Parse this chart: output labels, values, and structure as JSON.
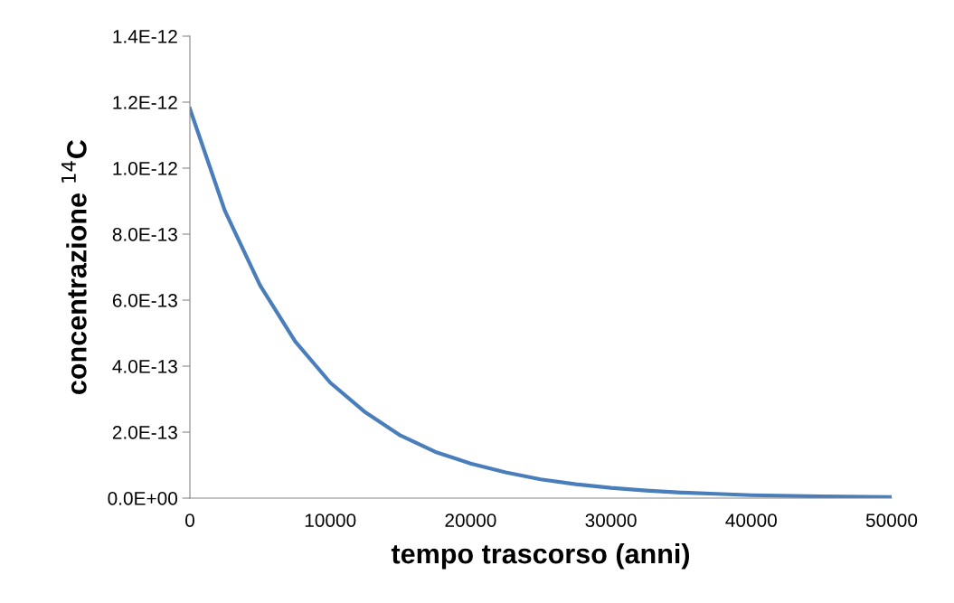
{
  "chart_data": {
    "type": "line",
    "xlabel": "tempo trascorso (anni)",
    "ylabel": "concentrazione $^{14}$C",
    "x": [
      0,
      2500,
      5000,
      7500,
      10000,
      12500,
      15000,
      17500,
      20000,
      22500,
      25000,
      27500,
      30000,
      32500,
      35000,
      37500,
      40000,
      45000,
      50000
    ],
    "series": [
      {
        "color": "#4a7ebb",
        "values": [
          1.18e-12,
          8.7e-13,
          6.45e-13,
          4.75e-13,
          3.5e-13,
          2.6e-13,
          1.9e-13,
          1.4e-13,
          1.05e-13,
          7.8e-14,
          5.7e-14,
          4.2e-14,
          3.1e-14,
          2.3e-14,
          1.7e-14,
          1.3e-14,
          9e-15,
          5e-15,
          3e-15
        ]
      }
    ],
    "xlim": [
      0,
      50000
    ],
    "xticks": [
      0,
      10000,
      20000,
      30000,
      40000,
      50000
    ],
    "ylim": [
      0,
      1.4e-12
    ],
    "yticks": [
      {
        "value": 0,
        "label": "0.0E+00"
      },
      {
        "value": 2e-13,
        "label": "2.0E-13"
      },
      {
        "value": 4e-13,
        "label": "4.0E-13"
      },
      {
        "value": 6e-13,
        "label": "6.0E-13"
      },
      {
        "value": 8e-13,
        "label": "8.0E-13"
      },
      {
        "value": 1e-12,
        "label": "1.0E-12"
      },
      {
        "value": 1.2e-12,
        "label": "1.2E-12"
      },
      {
        "value": 1.4e-12,
        "label": "1.4E-12"
      }
    ],
    "grid": false,
    "legend": false,
    "marker": "none",
    "line_style": "solid"
  }
}
